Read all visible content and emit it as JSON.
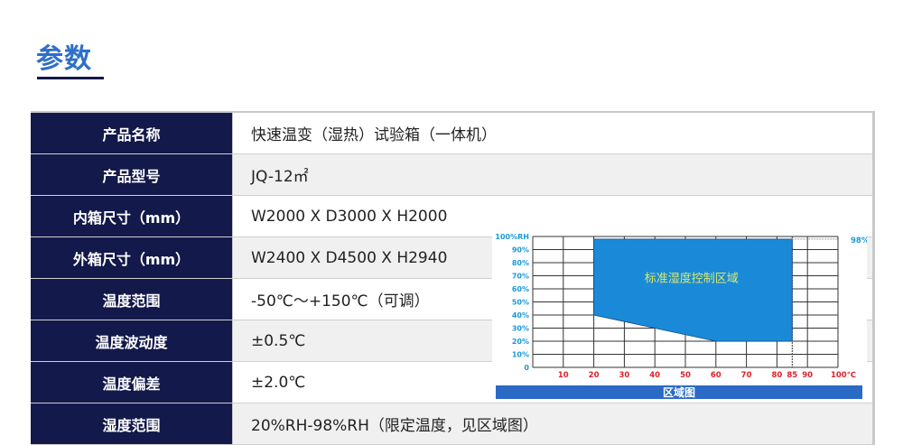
{
  "header": {
    "title": "参数"
  },
  "specs": [
    {
      "label": "产品名称",
      "value": "快速温变（湿热）试验箱（一体机）"
    },
    {
      "label": "产品型号",
      "value": "JQ-12㎡"
    },
    {
      "label": "内箱尺寸（mm）",
      "value": "W2000 X D3000 X H2000"
    },
    {
      "label": "外箱尺寸（mm）",
      "value": "W2400 X D4500 X H2940"
    },
    {
      "label": "温度范围",
      "value": "-50℃～+150℃（可调）"
    },
    {
      "label": "温度波动度",
      "value": "±0.5℃"
    },
    {
      "label": "温度偏差",
      "value": "±2.0℃"
    },
    {
      "label": "湿度范围",
      "value": "20%RH-98%RH（限定温度，见区域图）"
    }
  ],
  "chart_data": {
    "type": "area",
    "title": "区域图",
    "region_label": "标准湿度控制区域",
    "x_ticks": [
      "10",
      "20",
      "30",
      "40",
      "50",
      "60",
      "70",
      "80",
      "85",
      "90",
      "100℃"
    ],
    "x_tick_values": [
      10,
      20,
      30,
      40,
      50,
      60,
      70,
      80,
      85,
      90,
      100
    ],
    "y_ticks": [
      "0",
      "10%",
      "20%",
      "30%",
      "40%",
      "50%",
      "60%",
      "70%",
      "80%",
      "90%",
      "100%RH"
    ],
    "y_tick_values": [
      0,
      10,
      20,
      30,
      40,
      50,
      60,
      70,
      80,
      90,
      100
    ],
    "right_label": "98%",
    "xlim": [
      0,
      100
    ],
    "ylim": [
      0,
      100
    ],
    "grid": true,
    "region": [
      [
        20,
        98
      ],
      [
        85,
        98
      ],
      [
        85,
        20
      ],
      [
        60,
        20
      ],
      [
        20,
        40
      ]
    ],
    "colors": {
      "region": "#1a8ad8",
      "region_text": "#d8e870",
      "y_ticks": "#1a9ad8",
      "x_ticks": "#e0202a",
      "title_bar": "#2a6ac4",
      "grid": "#333333"
    }
  }
}
